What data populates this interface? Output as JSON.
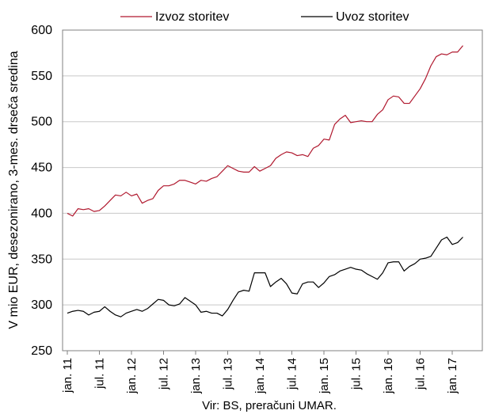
{
  "chart_data": {
    "type": "line",
    "ylabel": "V mio EUR, desezonirano, 3-mes. drseča sredina",
    "source": "Vir: BS, preračuni UMAR.",
    "ylim": [
      250,
      600
    ],
    "yticks": [
      250,
      300,
      350,
      400,
      450,
      500,
      550,
      600
    ],
    "xticks": [
      "jan. 11",
      "jul. 11",
      "jan. 12",
      "jul. 12",
      "jan. 13",
      "jul. 13",
      "jan. 14",
      "jul. 14",
      "jan. 15",
      "jul. 15",
      "jan. 16",
      "jul. 16",
      "jan. 17"
    ],
    "grid": "horizontal",
    "legend_position": "top",
    "series": [
      {
        "name": "Izvoz storitev",
        "color": "#b0182e",
        "values": [
          400,
          397,
          405,
          404,
          405,
          402,
          403,
          408,
          414,
          420,
          419,
          423,
          419,
          421,
          411,
          414,
          416,
          425,
          430,
          430,
          432,
          436,
          436,
          434,
          432,
          436,
          435,
          438,
          440,
          446,
          452,
          449,
          446,
          445,
          445,
          451,
          446,
          449,
          452,
          460,
          464,
          467,
          466,
          463,
          464,
          462,
          471,
          474,
          481,
          480,
          497,
          503,
          507,
          499,
          500,
          501,
          500,
          500,
          508,
          513,
          524,
          528,
          527,
          520,
          520,
          528,
          536,
          547,
          561,
          571,
          574,
          573,
          576,
          576,
          583
        ]
      },
      {
        "name": "Uvoz storitev",
        "color": "#000000",
        "values": [
          291,
          293,
          294,
          293,
          289,
          292,
          293,
          298,
          293,
          289,
          287,
          291,
          293,
          295,
          293,
          296,
          301,
          306,
          305,
          300,
          299,
          301,
          308,
          304,
          300,
          292,
          293,
          291,
          291,
          288,
          295,
          305,
          314,
          316,
          315,
          335,
          335,
          335,
          320,
          325,
          329,
          323,
          313,
          312,
          323,
          325,
          325,
          319,
          324,
          331,
          333,
          337,
          339,
          341,
          339,
          338,
          334,
          331,
          328,
          335,
          346,
          347,
          347,
          337,
          342,
          345,
          350,
          351,
          353,
          362,
          371,
          374,
          366,
          368,
          374
        ]
      }
    ]
  }
}
